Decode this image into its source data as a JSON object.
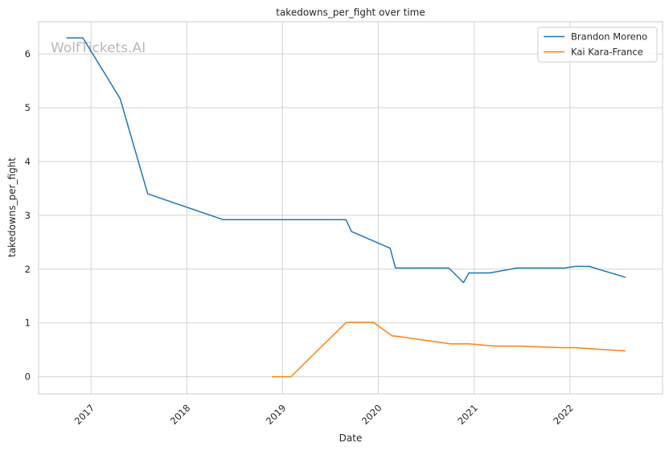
{
  "chart_data": {
    "type": "line",
    "title": "takedowns_per_fight over time",
    "xlabel": "Date",
    "ylabel": "takedowns_per_fight",
    "watermark": "WolfTickets.AI",
    "x_ticks": [
      "2017",
      "2018",
      "2019",
      "2020",
      "2021",
      "2022"
    ],
    "y_ticks": [
      "0",
      "1",
      "2",
      "3",
      "4",
      "5",
      "6"
    ],
    "xlim": [
      "2016-06-15",
      "2022-12-20"
    ],
    "ylim": [
      -0.32,
      6.6
    ],
    "grid": true,
    "legend_position": "top-right",
    "colors": {
      "brandon": "#1f77b4",
      "kai": "#ff7f0e",
      "grid": "#d3d3d3",
      "axes": "#cccccc"
    },
    "series": [
      {
        "name": "Brandon Moreno",
        "color": "#1f77b4",
        "points": [
          [
            "2016-10-01",
            6.3
          ],
          [
            "2016-12-01",
            6.3
          ],
          [
            "2017-04-22",
            5.17
          ],
          [
            "2017-08-05",
            3.4
          ],
          [
            "2018-05-19",
            2.92
          ],
          [
            "2019-08-31",
            2.92
          ],
          [
            "2019-09-21",
            2.7
          ],
          [
            "2020-02-15",
            2.39
          ],
          [
            "2020-03-07",
            2.02
          ],
          [
            "2020-09-26",
            2.02
          ],
          [
            "2020-11-21",
            1.75
          ],
          [
            "2020-12-12",
            1.93
          ],
          [
            "2021-03-01",
            1.93
          ],
          [
            "2021-06-12",
            2.02
          ],
          [
            "2021-12-11",
            2.02
          ],
          [
            "2022-01-22",
            2.05
          ],
          [
            "2022-03-15",
            2.05
          ],
          [
            "2022-07-30",
            1.85
          ]
        ]
      },
      {
        "name": "Kai Kara-France",
        "color": "#ff7f0e",
        "points": [
          [
            "2018-11-24",
            0.0
          ],
          [
            "2019-02-02",
            0.0
          ],
          [
            "2019-09-01",
            1.01
          ],
          [
            "2019-12-14",
            1.01
          ],
          [
            "2020-02-22",
            0.76
          ],
          [
            "2020-03-14",
            0.75
          ],
          [
            "2020-10-03",
            0.61
          ],
          [
            "2020-12-12",
            0.61
          ],
          [
            "2021-03-20",
            0.57
          ],
          [
            "2021-06-19",
            0.57
          ],
          [
            "2021-12-04",
            0.54
          ],
          [
            "2022-01-22",
            0.54
          ],
          [
            "2022-07-30",
            0.48
          ]
        ]
      }
    ]
  }
}
